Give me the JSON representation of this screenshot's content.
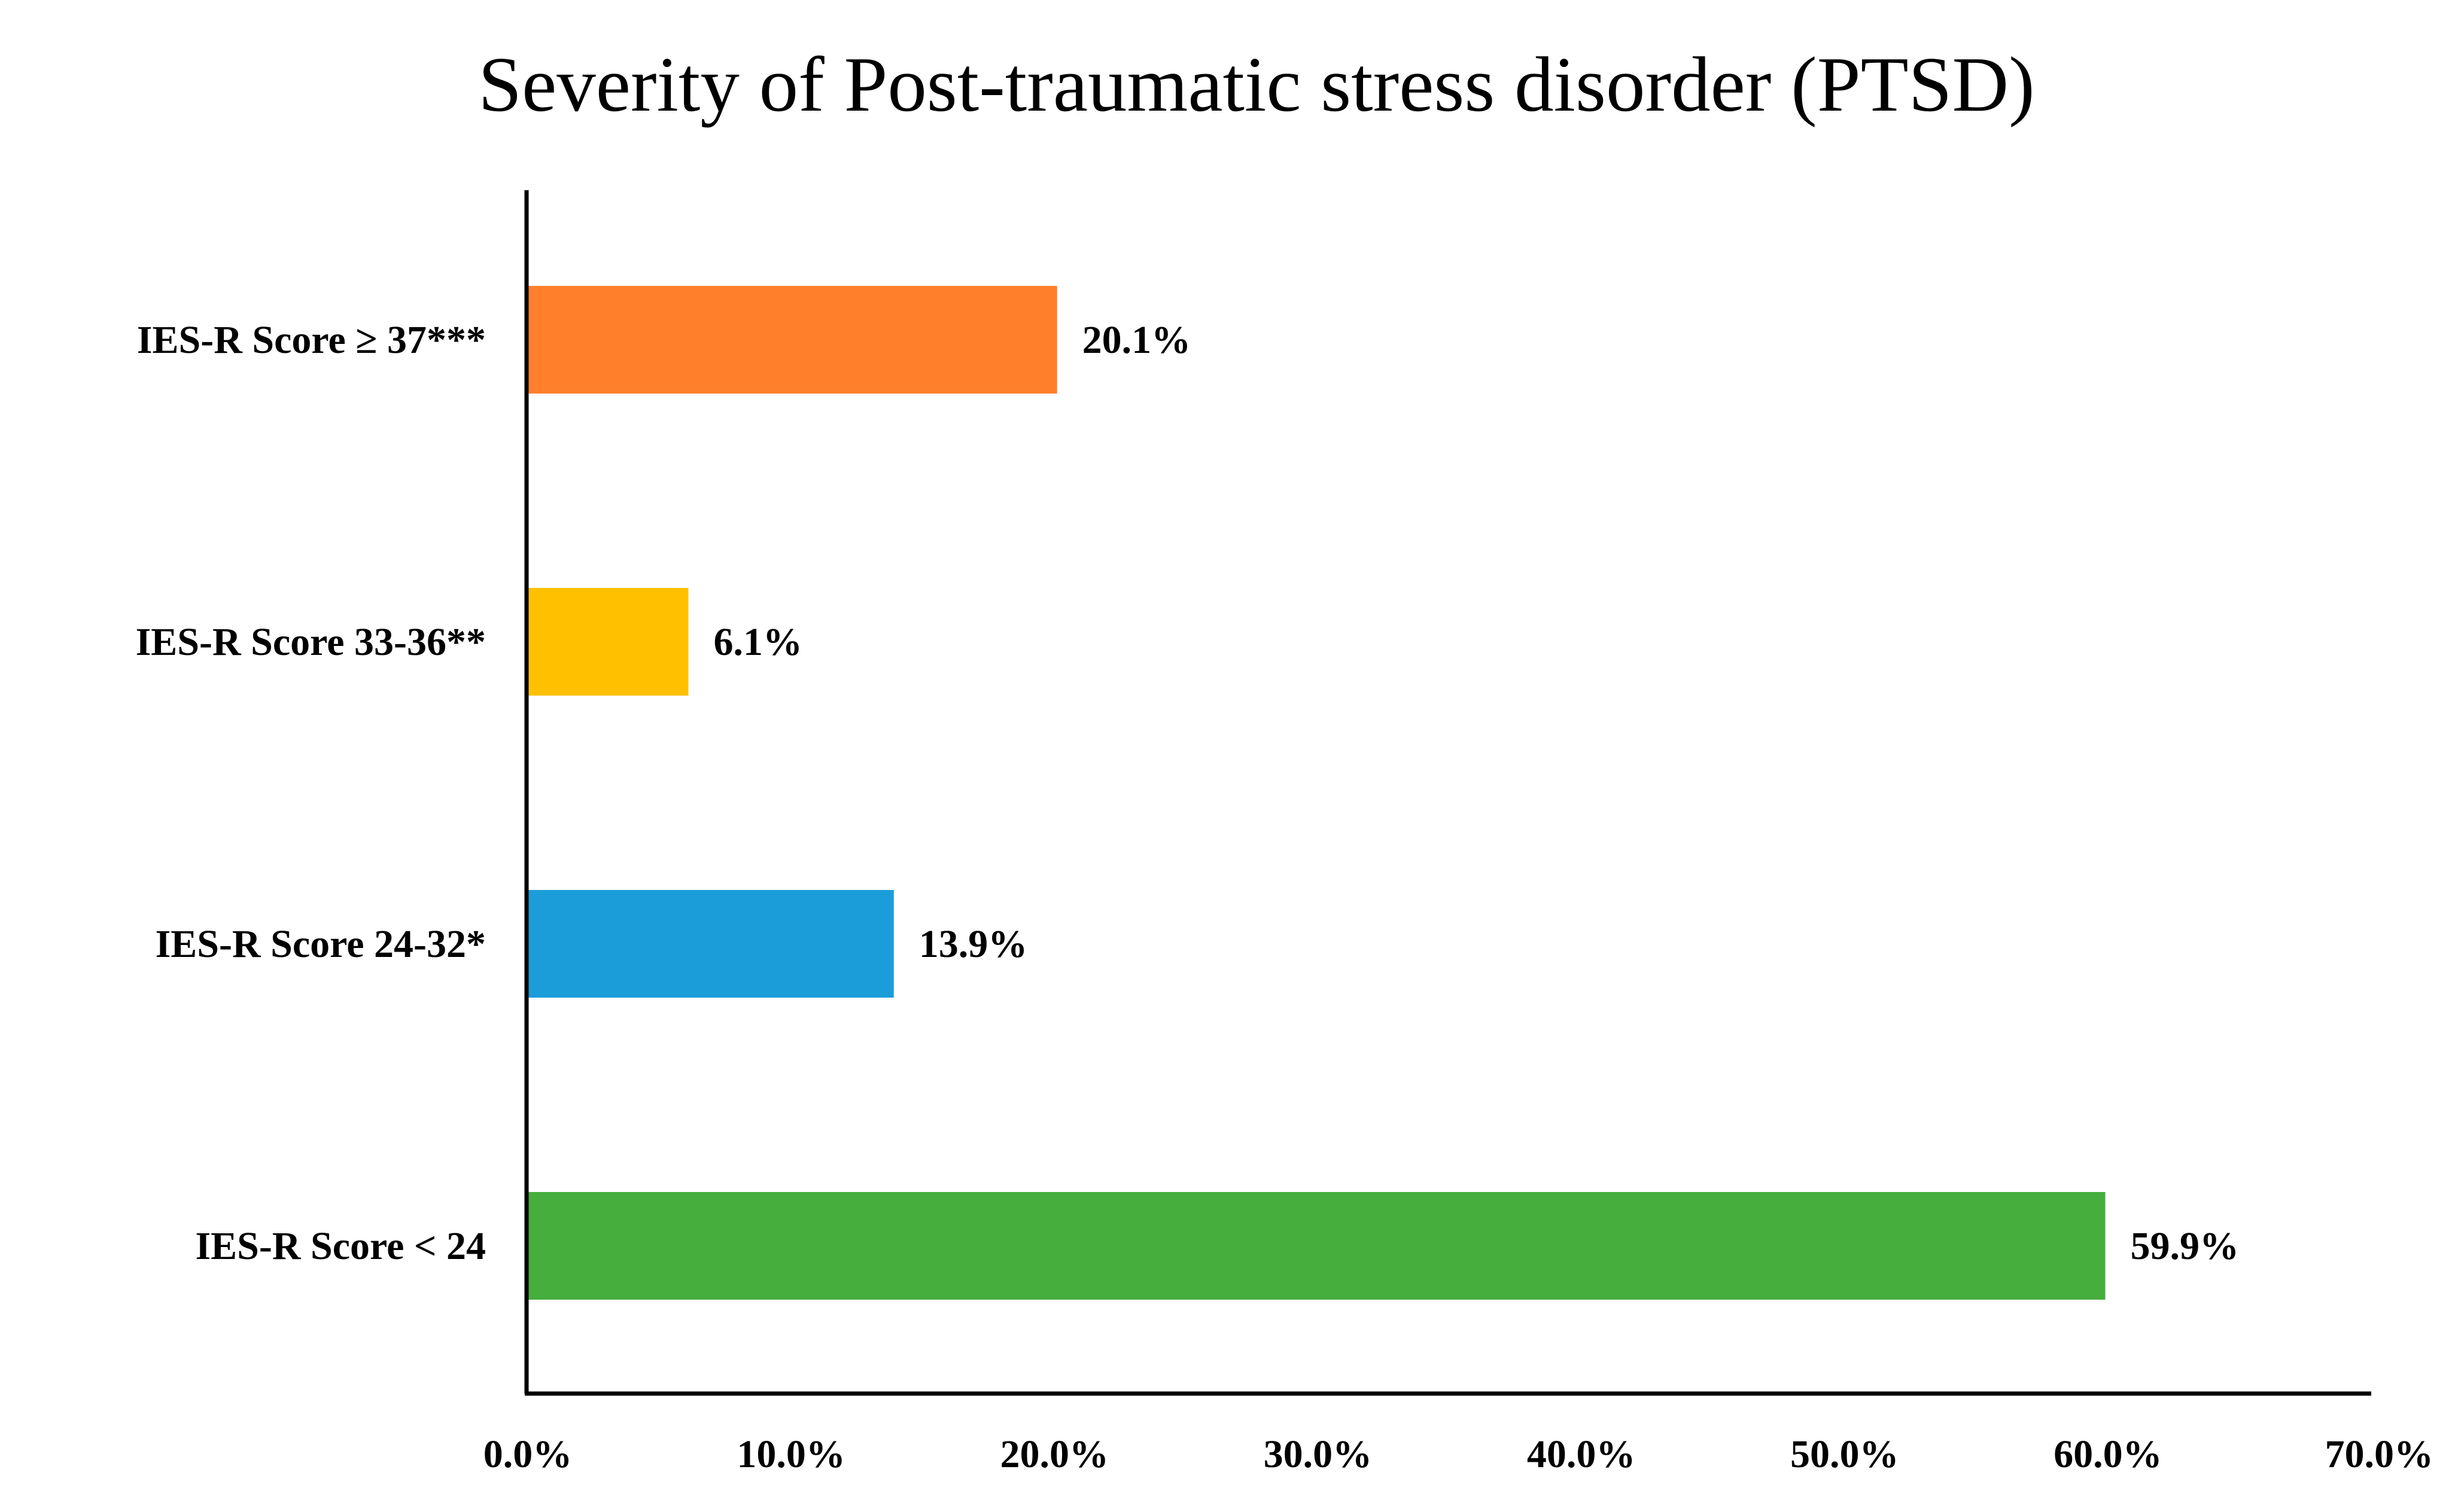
{
  "chart_data": {
    "type": "bar",
    "orientation": "horizontal",
    "title": "Severity of Post-traumatic stress disorder (PTSD)",
    "xlabel": "",
    "ylabel": "",
    "categories": [
      "IES-R Score ≥ 37***",
      "IES-R Score 33-36**",
      "IES-R Score 24-32*",
      "IES-R Score < 24"
    ],
    "values": [
      20.1,
      6.1,
      13.9,
      59.9
    ],
    "value_labels": [
      "20.1%",
      "6.1%",
      "13.9%",
      "59.9%"
    ],
    "colors": [
      "#FF7F2A",
      "#FFC000",
      "#1B9DD9",
      "#45AE3C"
    ],
    "xlim": [
      0,
      70
    ],
    "xticks": [
      0,
      10,
      20,
      30,
      40,
      50,
      60,
      70
    ],
    "xtick_labels": [
      "0.0%",
      "10.0%",
      "20.0%",
      "30.0%",
      "40.0%",
      "50.0%",
      "60.0%",
      "70.0%"
    ],
    "grid": false,
    "legend": "none"
  }
}
